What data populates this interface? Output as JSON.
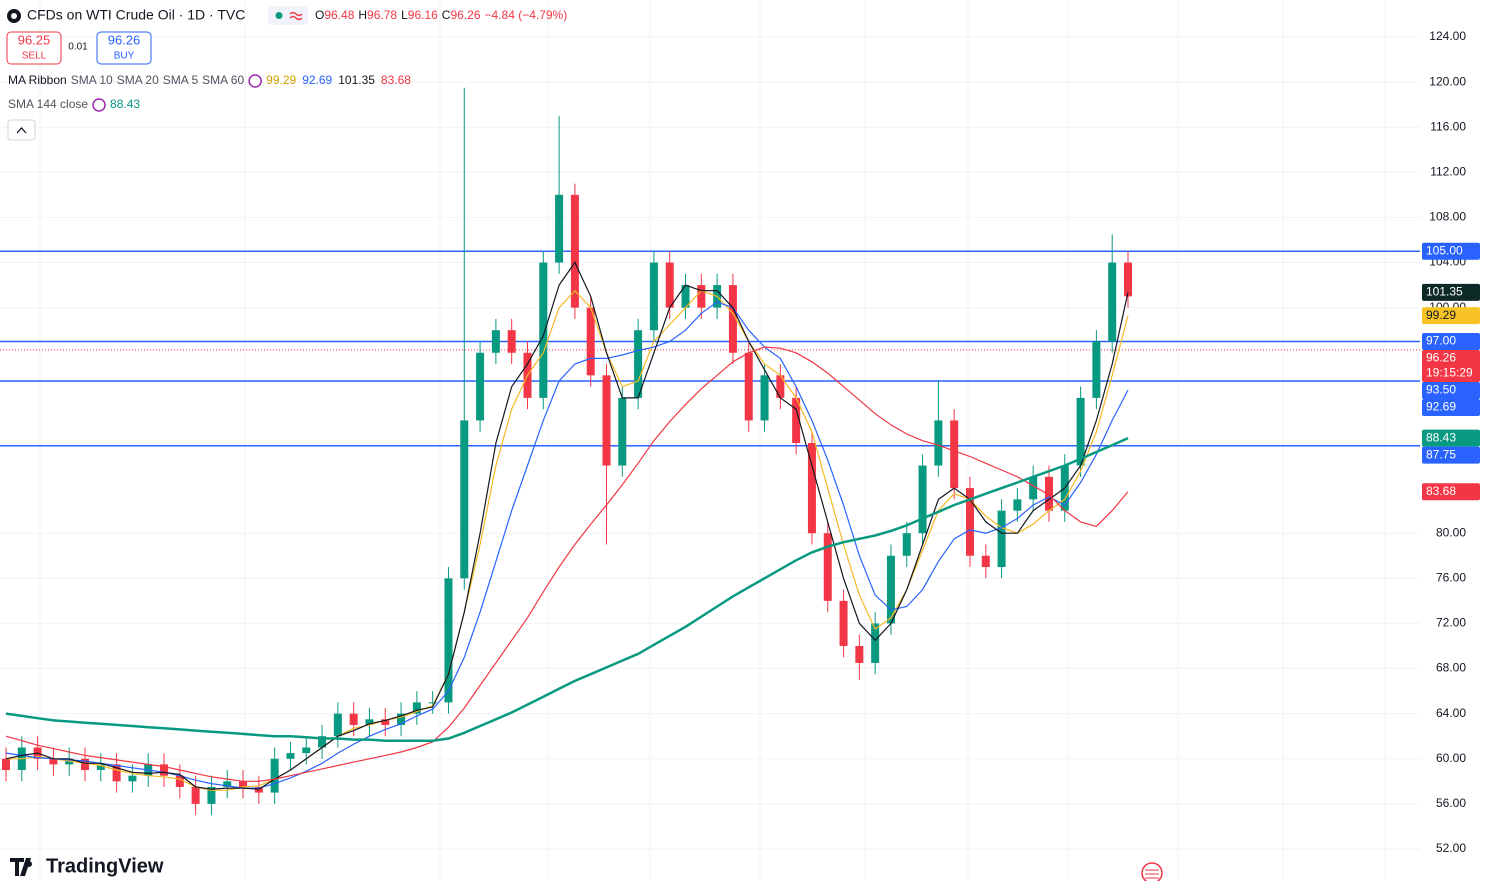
{
  "chart_data": {
    "type": "candlestick",
    "title": "CFDs on WTI Crude Oil · 1D · TVC",
    "header": {
      "items": [
        {
          "label": "O",
          "value": 96.48
        },
        {
          "label": "H",
          "value": 96.78
        },
        {
          "label": "L",
          "value": 96.16
        },
        {
          "label": "C",
          "value": 96.26
        }
      ],
      "change": "−4.84 (−4.79%)"
    },
    "trade": {
      "sell_price": 96.25,
      "sell_label": "SELL",
      "spread": 0.01,
      "buy_price": 96.26,
      "buy_label": "BUY"
    },
    "legend_title": "MA Ribbon",
    "up_color": "#089981",
    "down_color": "#f23645",
    "ylim": [
      49.16,
      127.28
    ],
    "yticks": [
      {
        "value": 124,
        "label": "124.00"
      },
      {
        "value": 120,
        "label": "120.00"
      },
      {
        "value": 116,
        "label": "116.00"
      },
      {
        "value": 112,
        "label": "112.00"
      },
      {
        "value": 108,
        "label": "108.00"
      },
      {
        "value": 104,
        "label": "104.00"
      },
      {
        "value": 100,
        "label": "100.00"
      },
      {
        "value": 80,
        "label": "80.00"
      },
      {
        "value": 76,
        "label": "76.00"
      },
      {
        "value": 72,
        "label": "72.00"
      },
      {
        "value": 68,
        "label": "68.00"
      },
      {
        "value": 64,
        "label": "64.00"
      },
      {
        "value": 60,
        "label": "60.00"
      },
      {
        "value": 56,
        "label": "56.00"
      },
      {
        "value": 52,
        "label": "52.00"
      }
    ],
    "grid": true,
    "open": [
      60,
      59,
      61,
      60,
      59.5,
      60,
      59,
      59.5,
      58,
      58.5,
      59.5,
      58.5,
      57.5,
      56,
      57.5,
      58,
      57.5,
      57,
      60,
      60.5,
      61,
      62,
      64,
      63,
      63.5,
      63,
      64,
      65,
      65,
      76,
      90,
      96,
      98,
      96,
      92,
      104,
      110,
      100,
      94,
      86,
      92,
      98,
      104,
      100,
      102,
      100,
      102,
      96,
      90,
      94,
      92,
      88,
      80,
      74,
      70,
      68.5,
      72,
      78,
      80,
      86,
      90,
      84,
      78,
      77,
      82,
      83,
      85,
      82,
      86,
      92,
      97,
      104
    ],
    "high": [
      61,
      62,
      62,
      61,
      61,
      61,
      60.5,
      60.5,
      59.5,
      60.5,
      60.5,
      59.5,
      58.5,
      58.5,
      59,
      59,
      58.5,
      61,
      61.5,
      62,
      63,
      65,
      65,
      64.5,
      64.5,
      65,
      66,
      66,
      77,
      119.5,
      97,
      99,
      99,
      97,
      105,
      117,
      111,
      101,
      95,
      93,
      99,
      105,
      105,
      103,
      103,
      103,
      103,
      97,
      95,
      95,
      93,
      89,
      81,
      75,
      71,
      73,
      79,
      81,
      87,
      93.5,
      91,
      85,
      79,
      83,
      84,
      86,
      86,
      87,
      93,
      98,
      106.5,
      105
    ],
    "low": [
      58,
      58,
      59,
      58.5,
      58.5,
      58,
      58,
      57,
      57,
      57.5,
      57.5,
      56.5,
      55,
      55,
      56.5,
      56.5,
      56,
      56,
      59,
      59.5,
      60,
      61,
      62,
      62,
      62,
      62,
      63,
      64,
      64,
      75,
      89,
      95,
      95,
      91,
      91,
      103,
      99,
      93,
      79,
      85,
      91,
      97,
      99,
      99,
      99,
      99,
      95,
      89,
      89,
      91,
      87,
      79,
      73,
      69,
      67,
      67.5,
      71,
      77,
      79,
      85,
      83,
      77,
      76,
      76,
      81,
      82,
      81,
      81,
      85,
      91,
      96,
      100
    ],
    "close": [
      59,
      61,
      60,
      59.5,
      60,
      59,
      59.5,
      58,
      58.5,
      59.5,
      58.5,
      57.5,
      56,
      57.5,
      58,
      57.5,
      57,
      60,
      60.5,
      61,
      62,
      64,
      63,
      63.5,
      63,
      64,
      65,
      65,
      76,
      90,
      96,
      98,
      96,
      92,
      104,
      110,
      100,
      94,
      86,
      92,
      98,
      104,
      100,
      102,
      100,
      102,
      96,
      90,
      94,
      92,
      88,
      80,
      74,
      70,
      68.5,
      72,
      78,
      80,
      86,
      90,
      84,
      78,
      77,
      82,
      83,
      85,
      82,
      86,
      92,
      97,
      104,
      101
    ],
    "series": [
      {
        "name": "SMA 10",
        "color": "#f7b924",
        "values": [
          60,
          60,
          60.2,
          60,
          59.8,
          59.6,
          59.4,
          59,
          58.7,
          58.5,
          58.4,
          58.2,
          57.5,
          57.2,
          57.2,
          57.5,
          57.6,
          58.2,
          59,
          60,
          61,
          62,
          62.7,
          63,
          63.4,
          63.7,
          64.2,
          64.7,
          67.5,
          73,
          79,
          86,
          91,
          94,
          96,
          100,
          101.5,
          100,
          96,
          93,
          93.5,
          97,
          98.5,
          100,
          101.5,
          101,
          99.5,
          97,
          95,
          94,
          92,
          89,
          84,
          79,
          74.5,
          71.5,
          72.5,
          75,
          78.5,
          82,
          83.5,
          83,
          81.5,
          80.5,
          80,
          80.8,
          82,
          83,
          85.5,
          89,
          94,
          99.29
        ]
      },
      {
        "name": "SMA 20",
        "color": "#2962ff",
        "values": [
          60.5,
          60.3,
          60.1,
          60,
          59.9,
          59.8,
          59.6,
          59.4,
          59.2,
          59,
          58.8,
          58.5,
          58.1,
          57.8,
          57.6,
          57.4,
          57.4,
          57.8,
          58.3,
          58.9,
          59.6,
          60.5,
          61.3,
          62,
          62.6,
          63.1,
          63.8,
          64.4,
          66,
          69,
          73,
          77.5,
          82,
          86,
          90,
          93.5,
          95,
          95.5,
          95.5,
          95.8,
          96.2,
          96.5,
          97,
          98,
          99.5,
          100.5,
          100,
          98,
          96.5,
          95.5,
          93,
          90,
          86.5,
          82.5,
          78,
          74.5,
          73.2,
          73.5,
          75,
          77.5,
          79.5,
          80.3,
          80,
          80.5,
          81.3,
          82.5,
          83.2,
          82.5,
          84.5,
          87,
          90,
          92.69
        ]
      },
      {
        "name": "SMA 5",
        "color": "#131722",
        "values": [
          60,
          60.3,
          60.5,
          60,
          60,
          59.6,
          59.6,
          59.2,
          58.8,
          58.7,
          58.8,
          58.6,
          57.5,
          57.3,
          57.4,
          57.4,
          57.3,
          58.2,
          59,
          60,
          61,
          62,
          62.5,
          63.1,
          63.4,
          63.8,
          64.3,
          64.6,
          67.5,
          73,
          80,
          88,
          93,
          95,
          97.5,
          102,
          104,
          101,
          96,
          92,
          92,
          96,
          100,
          102,
          101.5,
          101.5,
          100,
          97,
          94.5,
          92,
          91,
          86,
          81,
          76,
          72,
          70.5,
          72,
          75,
          79,
          83,
          84,
          83,
          81,
          80,
          80,
          82,
          83,
          84,
          86,
          90,
          95,
          101.35
        ]
      },
      {
        "name": "SMA 60",
        "color": "#f23645",
        "values": [
          62,
          61.6,
          61.2,
          60.9,
          60.6,
          60.3,
          60.1,
          59.9,
          59.7,
          59.5,
          59.3,
          59,
          58.7,
          58.4,
          58.2,
          58,
          58,
          58.2,
          58.5,
          58.8,
          59.1,
          59.4,
          59.7,
          60,
          60.3,
          60.6,
          61,
          61.5,
          62.8,
          64.5,
          66.5,
          68.5,
          70.5,
          72.5,
          74.8,
          77,
          79,
          80.8,
          82.5,
          84.3,
          86.2,
          88.2,
          89.9,
          91.4,
          92.8,
          94,
          95.2,
          96,
          96.5,
          96.4,
          96,
          95.2,
          94.2,
          93,
          91.8,
          90.6,
          89.6,
          88.8,
          88.2,
          87.8,
          87.3,
          86.8,
          86.2,
          85.6,
          85,
          84.2,
          83.4,
          82,
          81,
          80.6,
          82,
          83.68
        ]
      },
      {
        "name": "SMA 144 close",
        "color": "#089981",
        "values": [
          64,
          63.8,
          63.6,
          63.4,
          63.3,
          63.2,
          63.1,
          63,
          62.9,
          62.8,
          62.7,
          62.6,
          62.5,
          62.4,
          62.3,
          62.2,
          62.1,
          62,
          62,
          61.9,
          61.8,
          61.8,
          61.7,
          61.7,
          61.6,
          61.6,
          61.6,
          61.6,
          61.8,
          62.3,
          62.9,
          63.5,
          64.1,
          64.8,
          65.5,
          66.2,
          66.9,
          67.5,
          68.1,
          68.7,
          69.3,
          70.1,
          70.9,
          71.7,
          72.6,
          73.5,
          74.4,
          75.2,
          76,
          76.8,
          77.6,
          78.3,
          78.8,
          79.2,
          79.5,
          79.8,
          80.2,
          80.7,
          81.3,
          81.9,
          82.5,
          83,
          83.5,
          84,
          84.5,
          85,
          85.5,
          86,
          86.6,
          87.2,
          87.8,
          88.43
        ]
      }
    ],
    "levels": [
      {
        "value": 105,
        "label": "105.00"
      },
      {
        "value": 97,
        "label": "97.00"
      },
      {
        "value": 93.5,
        "label": "93.50"
      },
      {
        "value": 87.75,
        "label": "87.75"
      }
    ],
    "level_color": "#2962ff",
    "last_price": {
      "value": 96.26,
      "countdown": "19:15:29"
    },
    "brand": "TradingView"
  }
}
